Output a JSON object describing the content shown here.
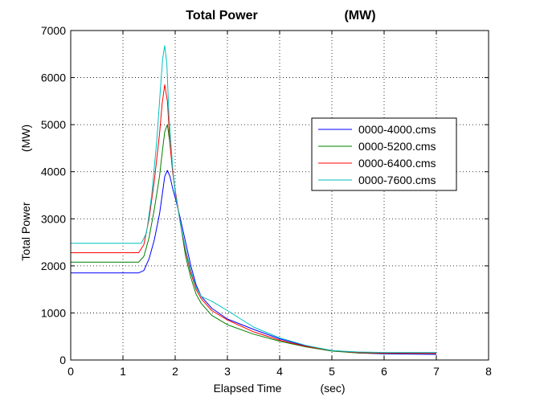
{
  "chart_data": {
    "type": "line",
    "title_left": "Total Power",
    "title_right": "(MW)",
    "xlabel_left": "Elapsed Time",
    "xlabel_right": "(sec)",
    "ylabel_left": "Total Power",
    "ylabel_right": "(MW)",
    "xlim": [
      0,
      8
    ],
    "ylim": [
      0,
      7000
    ],
    "xticks": [
      0,
      1,
      2,
      3,
      4,
      5,
      6,
      7,
      8
    ],
    "yticks": [
      0,
      1000,
      2000,
      3000,
      4000,
      5000,
      6000,
      7000
    ],
    "grid": true,
    "legend_position": "top-right",
    "series": [
      {
        "name": "0000-4000.cms",
        "color": "#0000ff",
        "x": [
          0,
          1.3,
          1.4,
          1.5,
          1.6,
          1.7,
          1.75,
          1.8,
          1.85,
          1.9,
          1.95,
          2.0,
          2.1,
          2.2,
          2.3,
          2.4,
          2.5,
          2.7,
          3.0,
          3.5,
          4.0,
          4.5,
          5.0,
          5.5,
          6.0,
          7.0
        ],
        "y": [
          1850,
          1850,
          1900,
          2150,
          2550,
          3100,
          3500,
          3900,
          4030,
          3900,
          3650,
          3450,
          3000,
          2500,
          2000,
          1600,
          1350,
          1100,
          870,
          650,
          450,
          300,
          200,
          150,
          130,
          120
        ]
      },
      {
        "name": "0000-5200.cms",
        "color": "#007f00",
        "x": [
          0,
          1.3,
          1.4,
          1.5,
          1.6,
          1.7,
          1.75,
          1.8,
          1.85,
          1.9,
          1.95,
          2.0,
          2.1,
          2.2,
          2.3,
          2.4,
          2.5,
          2.7,
          3.0,
          3.5,
          4.0,
          4.5,
          5.0,
          5.5,
          6.0,
          7.0
        ],
        "y": [
          2080,
          2080,
          2200,
          2600,
          3200,
          3900,
          4400,
          4850,
          5000,
          4600,
          4050,
          3600,
          2900,
          2200,
          1750,
          1400,
          1200,
          950,
          750,
          550,
          400,
          280,
          190,
          150,
          140,
          140
        ]
      },
      {
        "name": "0000-6400.cms",
        "color": "#ff0000",
        "x": [
          0,
          1.3,
          1.4,
          1.5,
          1.6,
          1.7,
          1.75,
          1.8,
          1.85,
          1.9,
          1.95,
          2.0,
          2.1,
          2.2,
          2.3,
          2.4,
          2.5,
          2.7,
          3.0,
          3.5,
          4.0,
          4.5,
          5.0,
          5.5,
          6.0,
          7.0
        ],
        "y": [
          2280,
          2280,
          2450,
          3000,
          3800,
          4800,
          5450,
          5850,
          5500,
          4600,
          4000,
          3600,
          2900,
          2300,
          1850,
          1500,
          1300,
          1050,
          850,
          600,
          420,
          290,
          200,
          160,
          145,
          140
        ]
      },
      {
        "name": "0000-7600.cms",
        "color": "#00bfbf",
        "x": [
          0,
          1.35,
          1.45,
          1.55,
          1.65,
          1.72,
          1.76,
          1.8,
          1.84,
          1.88,
          1.95,
          2.0,
          2.1,
          2.2,
          2.3,
          2.4,
          2.5,
          2.7,
          3.0,
          3.5,
          4.0,
          4.5,
          5.0,
          5.5,
          6.0,
          7.0
        ],
        "y": [
          2480,
          2480,
          2700,
          3500,
          4700,
          5800,
          6400,
          6680,
          6300,
          5200,
          4100,
          3550,
          2900,
          2350,
          1900,
          1550,
          1350,
          1250,
          1050,
          700,
          470,
          310,
          200,
          170,
          160,
          160
        ]
      }
    ]
  }
}
